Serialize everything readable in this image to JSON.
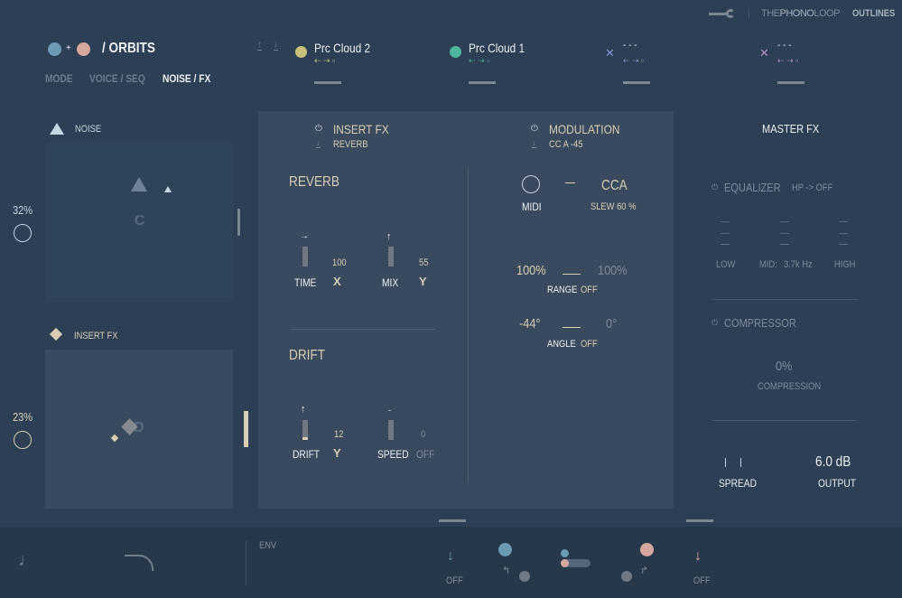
{
  "topbar": {
    "brand_the": "THE",
    "brand_phono": "PHONO",
    "brand_loop": "LOOP",
    "product": "OUTLINES"
  },
  "header": {
    "title": "/ ORBITS",
    "plus": "+",
    "tabs": [
      {
        "label": "MODE"
      },
      {
        "label": "VOICE / SEQ"
      },
      {
        "label": "NOISE / FX",
        "active": true
      }
    ]
  },
  "slots": [
    {
      "name": "Prc Cloud 2",
      "color": "#c8c27a"
    },
    {
      "name": "Prc Cloud 1",
      "color": "#4fb59c"
    },
    {
      "name": "- - -",
      "color": "#7f97d6"
    },
    {
      "name": "- - -",
      "color": "#b58fc7"
    }
  ],
  "left": {
    "noise": {
      "label": "NOISE",
      "percent": "32%",
      "pad_letter": "C"
    },
    "insert": {
      "label": "INSERT FX",
      "percent": "23%",
      "pad_letter": "D"
    }
  },
  "center": {
    "insert_fx": {
      "title": "INSERT FX",
      "preset": "REVERB"
    },
    "modulation": {
      "title": "MODULATION",
      "preset": "CC A -45"
    },
    "reverb": {
      "title": "REVERB",
      "time_label": "TIME",
      "time_value": "100",
      "time_axis": "X",
      "mix_label": "MIX",
      "mix_value": "55",
      "mix_axis": "Y"
    },
    "drift": {
      "title": "DRIFT",
      "drift_label": "DRIFT",
      "drift_value": "12",
      "drift_axis": "Y",
      "speed_label": "SPEED",
      "speed_value": "0",
      "speed_axis": "OFF"
    },
    "mod": {
      "midi_label": "MIDI",
      "source": "CCA",
      "slew": "SLEW 60 %",
      "range_a": "100%",
      "range_b": "100%",
      "range_label": "RANGE",
      "range_state": "OFF",
      "angle_a": "-44°",
      "angle_b": "0°",
      "angle_label": "ANGLE",
      "angle_state": "OFF"
    }
  },
  "master": {
    "title": "MASTER FX",
    "eq_title": "EQUALIZER",
    "hp": "HP -> OFF",
    "low": "LOW",
    "mid": "MID:",
    "mid_freq": "3.7k Hz",
    "high": "HIGH",
    "comp_title": "COMPRESSOR",
    "comp_value": "0%",
    "comp_label": "COMPRESSION",
    "spread_label": "SPREAD",
    "output_value": "6.0 dB",
    "output_label": "OUTPUT"
  },
  "bottom": {
    "env": "ENV",
    "off_left": "OFF",
    "off_right": "OFF"
  }
}
